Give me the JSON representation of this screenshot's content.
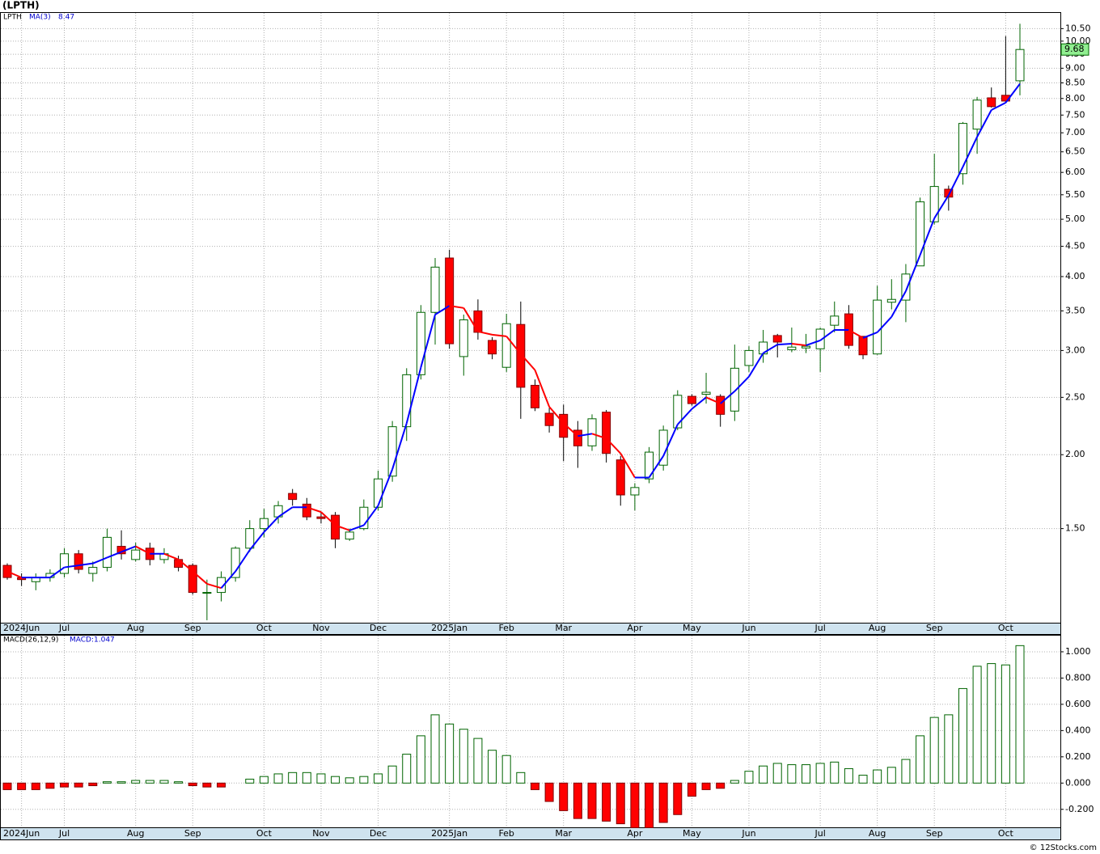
{
  "chart_data": [
    {
      "type": "candlestick",
      "title": "(LPTH)",
      "categories": [
        null,
        "2024Jun",
        null,
        null,
        "Jul",
        null,
        null,
        null,
        null,
        "Aug",
        null,
        null,
        null,
        "Sep",
        null,
        null,
        null,
        null,
        "Oct",
        null,
        null,
        null,
        "Nov",
        null,
        null,
        null,
        "Dec",
        null,
        null,
        null,
        null,
        "2025Jan",
        null,
        null,
        null,
        "Feb",
        null,
        null,
        null,
        "Mar",
        null,
        null,
        null,
        null,
        "Apr",
        null,
        null,
        null,
        "May",
        null,
        null,
        null,
        "Jun",
        null,
        null,
        null,
        null,
        "Jul",
        null,
        null,
        null,
        "Aug",
        null,
        null,
        null,
        "Sep",
        null,
        null,
        null,
        null,
        "Oct",
        null
      ],
      "series": [
        {
          "name": "LPTH",
          "up_color": "#006400",
          "down_color": "#ff0000",
          "open": [
            1.3,
            1.24,
            1.22,
            1.24,
            1.26,
            1.36,
            1.26,
            1.29,
            1.4,
            1.33,
            1.39,
            1.33,
            1.33,
            1.3,
            1.17,
            1.17,
            1.24,
            1.39,
            1.5,
            1.57,
            1.72,
            1.65,
            1.57,
            1.58,
            1.44,
            1.5,
            1.63,
            1.84,
            2.23,
            2.73,
            3.48,
            4.3,
            2.93,
            3.5,
            3.12,
            2.81,
            3.32,
            2.62,
            2.35,
            2.34,
            2.2,
            2.07,
            2.36,
            1.96,
            1.71,
            1.82,
            1.92,
            2.22,
            2.51,
            2.53,
            2.51,
            2.37,
            2.83,
            2.96,
            3.18,
            3.01,
            3.03,
            3.02,
            3.31,
            3.46,
            3.17,
            2.96,
            3.62,
            3.65,
            4.17,
            4.95,
            5.62,
            5.97,
            7.1,
            8.02,
            8.1,
            8.57
          ],
          "high": [
            1.31,
            1.26,
            1.26,
            1.28,
            1.39,
            1.38,
            1.32,
            1.5,
            1.49,
            1.42,
            1.42,
            1.39,
            1.35,
            1.31,
            1.23,
            1.27,
            1.4,
            1.55,
            1.62,
            1.67,
            1.75,
            1.69,
            1.6,
            1.6,
            1.5,
            1.68,
            1.88,
            2.28,
            2.8,
            3.58,
            4.3,
            4.44,
            3.45,
            3.66,
            3.16,
            3.46,
            3.63,
            2.68,
            2.4,
            2.43,
            2.28,
            2.34,
            2.38,
            1.99,
            1.79,
            2.06,
            2.24,
            2.57,
            2.53,
            2.75,
            2.53,
            3.07,
            3.05,
            3.25,
            3.2,
            3.28,
            3.2,
            3.28,
            3.63,
            3.58,
            3.17,
            3.86,
            3.96,
            4.2,
            5.44,
            6.45,
            5.7,
            7.3,
            8.05,
            8.35,
            10.2,
            10.7
          ],
          "low": [
            1.23,
            1.2,
            1.18,
            1.22,
            1.24,
            1.26,
            1.22,
            1.27,
            1.33,
            1.32,
            1.3,
            1.31,
            1.27,
            1.16,
            1.05,
            1.13,
            1.22,
            1.37,
            1.45,
            1.53,
            1.64,
            1.55,
            1.53,
            1.39,
            1.43,
            1.49,
            1.61,
            1.8,
            2.11,
            2.68,
            3.07,
            3.02,
            2.72,
            3.13,
            2.9,
            2.76,
            2.3,
            2.37,
            2.18,
            1.95,
            1.9,
            2.03,
            1.94,
            1.64,
            1.61,
            1.79,
            1.88,
            2.2,
            2.42,
            2.44,
            2.23,
            2.28,
            2.76,
            2.86,
            2.92,
            2.98,
            2.97,
            2.76,
            3.22,
            3.02,
            2.9,
            2.95,
            3.52,
            3.35,
            4.17,
            4.9,
            5.17,
            5.72,
            6.45,
            7.72,
            7.88,
            8.1
          ],
          "close": [
            1.24,
            1.23,
            1.24,
            1.26,
            1.36,
            1.28,
            1.29,
            1.45,
            1.36,
            1.38,
            1.33,
            1.36,
            1.29,
            1.17,
            1.17,
            1.24,
            1.39,
            1.5,
            1.56,
            1.64,
            1.68,
            1.57,
            1.56,
            1.44,
            1.48,
            1.63,
            1.82,
            2.23,
            2.73,
            3.48,
            4.15,
            3.08,
            3.38,
            3.22,
            2.96,
            3.33,
            2.6,
            2.4,
            2.24,
            2.14,
            2.07,
            2.3,
            2.01,
            1.71,
            1.76,
            2.02,
            2.2,
            2.52,
            2.44,
            2.55,
            2.34,
            2.8,
            3.0,
            3.1,
            3.1,
            3.04,
            3.05,
            3.26,
            3.43,
            3.06,
            2.95,
            3.65,
            3.66,
            4.04,
            5.35,
            5.68,
            5.45,
            7.26,
            7.95,
            7.75,
            7.92,
            9.68
          ]
        }
      ],
      "overlays": [
        {
          "name": "MA(3)",
          "up_color": "#0000ff",
          "down_color": "#ff0000",
          "values": [
            1.27,
            1.24,
            1.24,
            1.24,
            1.29,
            1.3,
            1.31,
            1.34,
            1.37,
            1.4,
            1.36,
            1.36,
            1.33,
            1.27,
            1.21,
            1.19,
            1.27,
            1.38,
            1.48,
            1.57,
            1.63,
            1.63,
            1.6,
            1.52,
            1.49,
            1.52,
            1.64,
            1.89,
            2.26,
            2.81,
            3.45,
            3.57,
            3.54,
            3.23,
            3.19,
            3.17,
            2.96,
            2.78,
            2.41,
            2.26,
            2.15,
            2.17,
            2.13,
            2.01,
            1.83,
            1.83,
            1.99,
            2.25,
            2.39,
            2.5,
            2.44,
            2.56,
            2.71,
            2.97,
            3.07,
            3.08,
            3.06,
            3.12,
            3.25,
            3.25,
            3.15,
            3.22,
            3.42,
            3.78,
            4.35,
            5.02,
            5.49,
            6.13,
            6.89,
            7.65,
            7.87,
            8.47
          ]
        }
      ],
      "log_scale": true,
      "grid": true,
      "last_price_color": "#90ee90",
      "ylim": [
        1.04,
        11.16
      ],
      "yticks": [
        {
          "value": 1.5,
          "label": "1.50"
        },
        {
          "value": 2,
          "label": "2.00"
        },
        {
          "value": 2.5,
          "label": "2.50"
        },
        {
          "value": 3,
          "label": "3.00"
        },
        {
          "value": 3.5,
          "label": "3.50"
        },
        {
          "value": 4,
          "label": "4.00"
        },
        {
          "value": 4.5,
          "label": "4.50"
        },
        {
          "value": 5,
          "label": "5.00"
        },
        {
          "value": 5.5,
          "label": "5.50"
        },
        {
          "value": 6,
          "label": "6.00"
        },
        {
          "value": 6.5,
          "label": "6.50"
        },
        {
          "value": 7,
          "label": "7.00"
        },
        {
          "value": 7.5,
          "label": "7.50"
        },
        {
          "value": 8,
          "label": "8.00"
        },
        {
          "value": 8.5,
          "label": "8.50"
        },
        {
          "value": 9,
          "label": "9.00"
        },
        {
          "value": 9.5,
          "label": "9.50"
        },
        {
          "value": 10,
          "label": "10.00"
        },
        {
          "value": 10.5,
          "label": "10.50"
        }
      ]
    },
    {
      "type": "bar",
      "indicator": "MACD(26,12,9)",
      "categories": [
        null,
        "2024Jun",
        null,
        null,
        "Jul",
        null,
        null,
        null,
        null,
        "Aug",
        null,
        null,
        null,
        "Sep",
        null,
        null,
        null,
        null,
        "Oct",
        null,
        null,
        null,
        "Nov",
        null,
        null,
        null,
        "Dec",
        null,
        null,
        null,
        null,
        "2025Jan",
        null,
        null,
        null,
        "Feb",
        null,
        null,
        null,
        "Mar",
        null,
        null,
        null,
        null,
        "Apr",
        null,
        null,
        null,
        "May",
        null,
        null,
        null,
        "Jun",
        null,
        null,
        null,
        null,
        "Jul",
        null,
        null,
        null,
        "Aug",
        null,
        null,
        null,
        "Sep",
        null,
        null,
        null,
        null,
        "Oct",
        null
      ],
      "series": [
        {
          "name": "MACD:1.047",
          "up_color": "#006400",
          "down_color": "#ff0000",
          "values": [
            -0.05,
            -0.05,
            -0.05,
            -0.04,
            -0.03,
            -0.03,
            -0.02,
            0.01,
            0.01,
            0.02,
            0.02,
            0.02,
            0.01,
            -0.02,
            -0.03,
            -0.03,
            0.0,
            0.03,
            0.05,
            0.07,
            0.08,
            0.08,
            0.07,
            0.05,
            0.04,
            0.05,
            0.07,
            0.13,
            0.22,
            0.36,
            0.52,
            0.45,
            0.41,
            0.34,
            0.25,
            0.21,
            0.08,
            -0.05,
            -0.14,
            -0.21,
            -0.27,
            -0.27,
            -0.29,
            -0.31,
            -0.34,
            -0.34,
            -0.3,
            -0.24,
            -0.1,
            -0.05,
            -0.04,
            0.02,
            0.09,
            0.13,
            0.15,
            0.14,
            0.14,
            0.15,
            0.16,
            0.11,
            0.06,
            0.1,
            0.12,
            0.18,
            0.36,
            0.5,
            0.52,
            0.72,
            0.89,
            0.91,
            0.9,
            1.047
          ]
        }
      ],
      "grid": true,
      "ylim": [
        -0.337,
        1.123
      ],
      "yticks": [
        {
          "value": -0.2,
          "label": "-0.200"
        },
        {
          "value": 0,
          "label": "0.000"
        },
        {
          "value": 0.2,
          "label": "0.200"
        },
        {
          "value": 0.4,
          "label": "0.400"
        },
        {
          "value": 0.6,
          "label": "0.600"
        },
        {
          "value": 0.8,
          "label": "0.800"
        },
        {
          "value": 1,
          "label": "1.000"
        }
      ]
    }
  ],
  "footer": "© 12Stocks.com"
}
